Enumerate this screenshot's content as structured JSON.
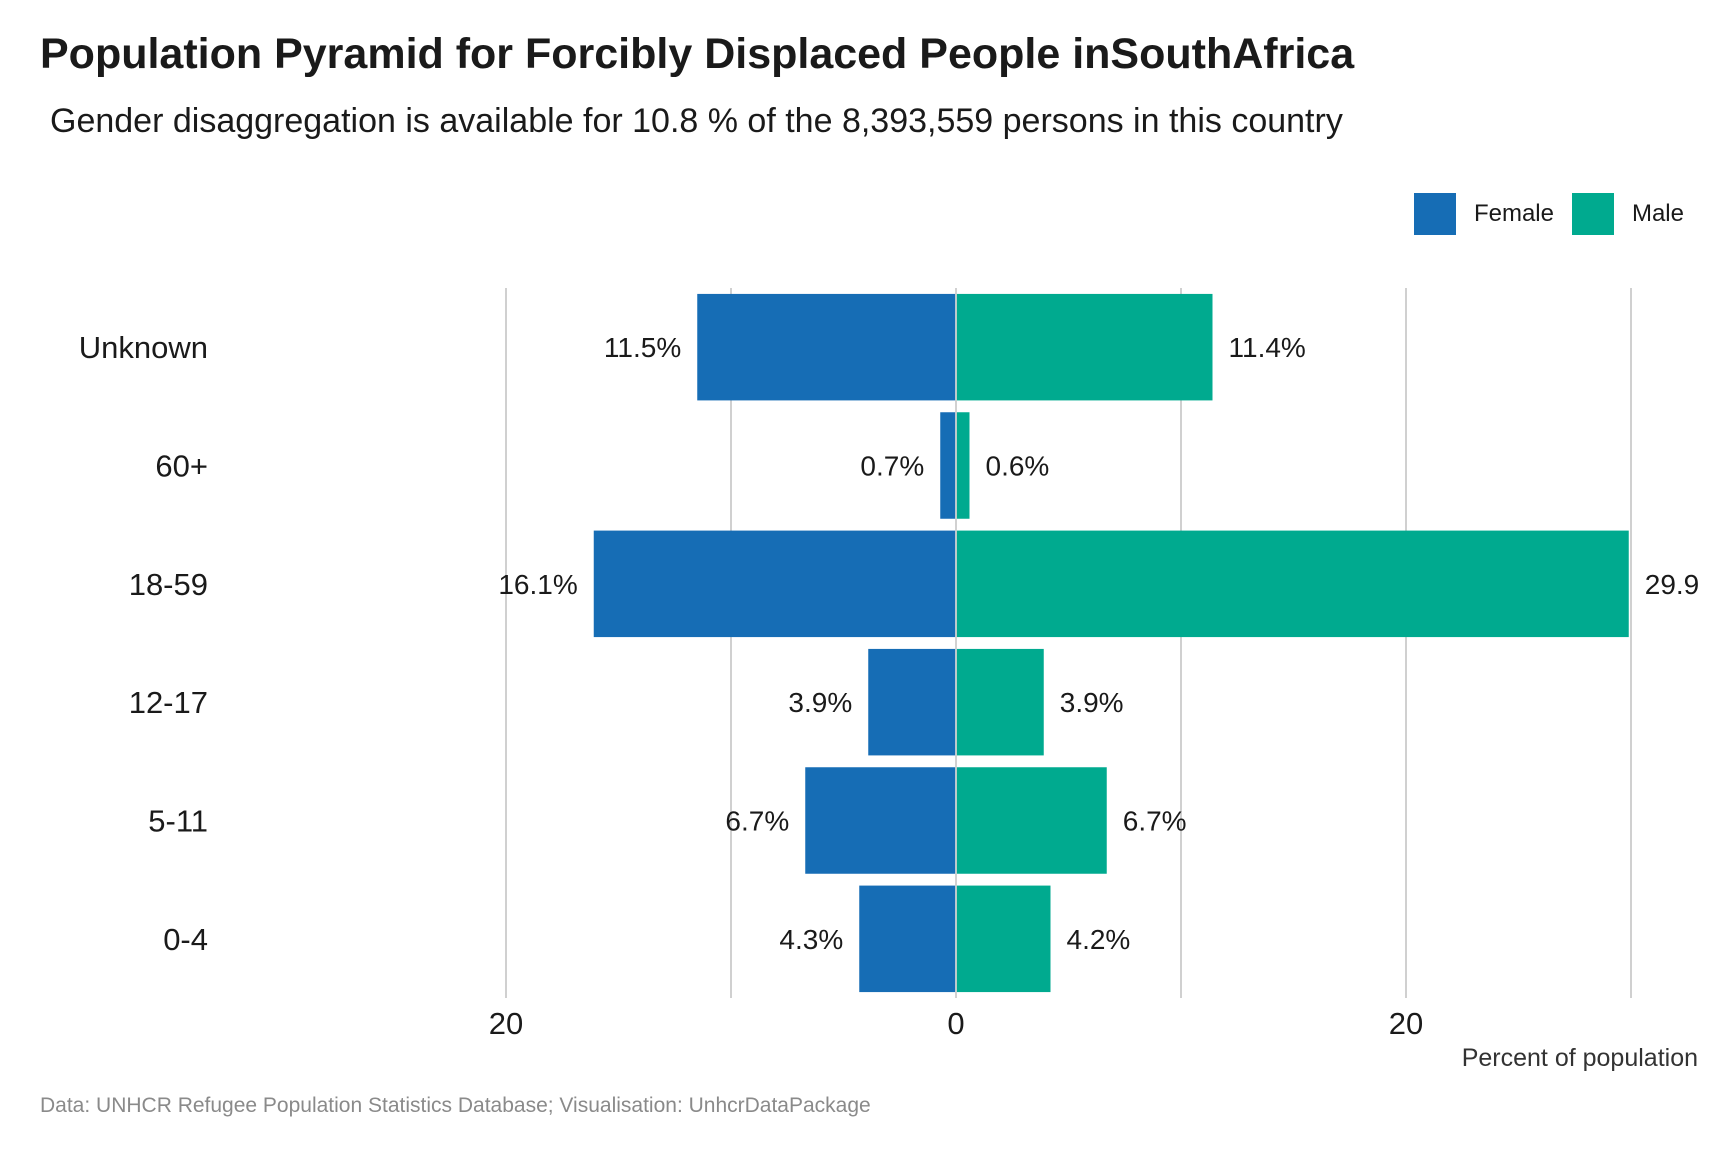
{
  "title": "Population Pyramid for Forcibly Displaced People inSouthAfrica",
  "subtitle": "Gender disaggregation is available for 10.8 % of the 8,393,559 persons in this country",
  "caption": "Data: UNHCR Refugee Population Statistics Database; Visualisation: UnhcrDataPackage",
  "legend": {
    "placement": "top-right",
    "items": [
      {
        "label": "Female",
        "color": "#166DB5"
      },
      {
        "label": "Male",
        "color": "#00AA8F"
      }
    ]
  },
  "chart_data": {
    "type": "bar",
    "orientation": "horizontal-diverging",
    "categories": [
      "Unknown",
      "60+",
      "18-59",
      "12-17",
      "5-11",
      "0-4"
    ],
    "series": [
      {
        "name": "Female",
        "color": "#166DB5",
        "values": [
          11.5,
          0.7,
          16.1,
          3.9,
          6.7,
          4.3
        ],
        "labels": [
          "11.5%",
          "0.7%",
          "16.1%",
          "3.9%",
          "6.7%",
          "4.3%"
        ]
      },
      {
        "name": "Male",
        "color": "#00AA8F",
        "values": [
          11.4,
          0.6,
          29.9,
          3.9,
          6.7,
          4.2
        ],
        "labels": [
          "11.4%",
          "0.6%",
          "29.9",
          "3.9%",
          "6.7%",
          "4.2%"
        ]
      }
    ],
    "xlim": [
      -30,
      30
    ],
    "xticks": [
      {
        "value": -20,
        "label": "20"
      },
      {
        "value": 0,
        "label": "0"
      },
      {
        "value": 20,
        "label": "20"
      }
    ],
    "xlabel": "Percent of population",
    "ylabel": "",
    "grid": "vertical",
    "gridline_color": "#D0D0D0"
  }
}
